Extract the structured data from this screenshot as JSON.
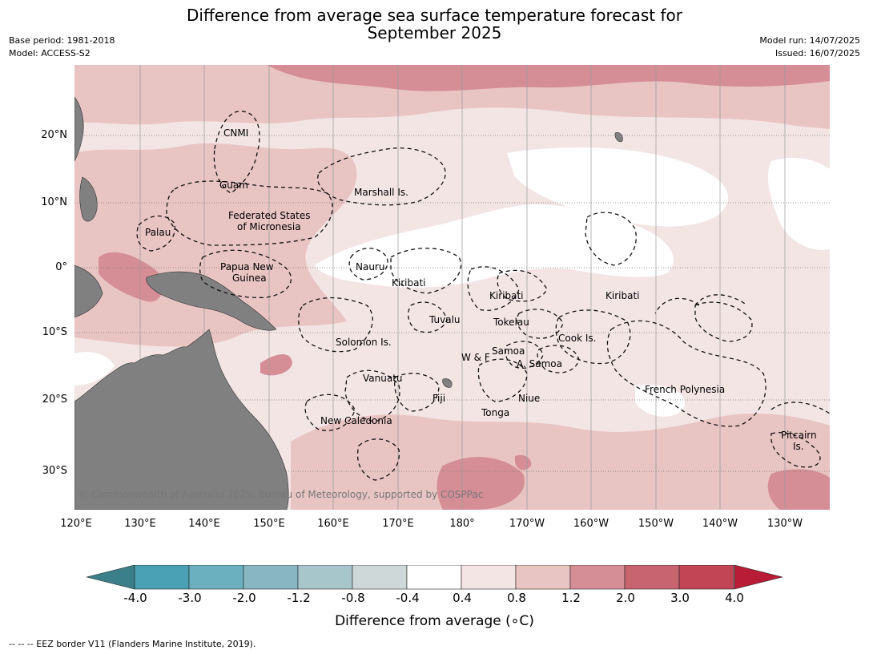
{
  "title_line1": "Difference from average sea surface temperature forecast for",
  "title_line2": "September 2025",
  "meta_left": {
    "base_period": "Base period: 1981-2018",
    "model": "Model: ACCESS-S2"
  },
  "meta_right": {
    "model_run": "Model run: 14/07/2025",
    "issued": "Issued: 16/07/2025"
  },
  "lat_labels": [
    "20°N",
    "10°N",
    "0°",
    "10°S",
    "20°S",
    "30°S"
  ],
  "lon_labels": [
    "120°E",
    "130°E",
    "140°E",
    "150°E",
    "160°E",
    "170°E",
    "180°",
    "170°W",
    "160°W",
    "150°W",
    "140°W",
    "130°W"
  ],
  "regions": {
    "cnmi": "CNMI",
    "guam": "Guam",
    "palau": "Palau",
    "fsm1": "Federated States",
    "fsm2": "of Micronesia",
    "marshall": "Marshall Is.",
    "nauru": "Nauru",
    "png1": "Papua New",
    "png2": "Guinea",
    "kiribati_w": "Kiribati",
    "kiribati_c": "Kiribati",
    "kiribati_e": "Kiribati",
    "tuvalu": "Tuvalu",
    "tokelau": "Tokelau",
    "solomon": "Solomon Is.",
    "samoa": "Samoa",
    "wf": "W & F",
    "asamoa": "A. Samoa",
    "cook": "Cook Is.",
    "vanuatu": "Vanuatu",
    "fiji": "Fiji",
    "niue": "Niue",
    "tonga": "Tonga",
    "frpoly": "French Polynesia",
    "newcal": "New Caledonia",
    "pitcairn1": "Pitcairn",
    "pitcairn2": "Is."
  },
  "copyright": "© Commonwealth of Australia 2025, Bureau of Meteorology, supported by COSPPac",
  "colorbar": {
    "title": "Difference from average (∘C)",
    "labels": [
      "-4.0",
      "-3.0",
      "-2.0",
      "-1.2",
      "-0.8",
      "-0.4",
      "0.4",
      "0.8",
      "1.2",
      "2.0",
      "3.0",
      "4.0"
    ],
    "colors": [
      "#4aa0b4",
      "#6bb0bf",
      "#88b6c3",
      "#a7c6cb",
      "#cfd8d9",
      "#ffffff",
      "#f4e5e5",
      "#e8c4c2",
      "#d68e96",
      "#c86470",
      "#c24555"
    ],
    "under_color": "#3b7f8b",
    "over_color": "#b81c36"
  },
  "footer": "-- -- -- EEZ border V11 (Flanders Marine Institute, 2019)."
}
